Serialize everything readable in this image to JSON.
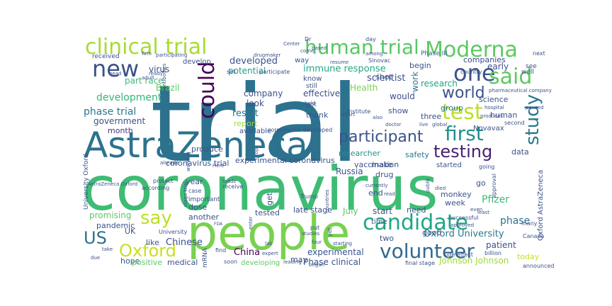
{
  "words": [
    {
      "text": "trial",
      "color": "#2c728e"
    },
    {
      "text": "coronavirus",
      "color": "#3fbc73"
    },
    {
      "text": "people",
      "color": "#7ad151"
    },
    {
      "text": "AstraZeneca",
      "color": "#2c728e"
    },
    {
      "text": "clinical trial",
      "color": "#a8db34"
    },
    {
      "text": "human trial",
      "color": "#58c765"
    },
    {
      "text": "Moderna",
      "color": "#5ec962"
    },
    {
      "text": "new",
      "color": "#3b528b"
    },
    {
      "text": "one",
      "color": "#3b528b"
    },
    {
      "text": "said",
      "color": "#5ec962"
    },
    {
      "text": "could",
      "color": "#440154"
    },
    {
      "text": "test",
      "color": "#bddf26"
    },
    {
      "text": "first",
      "color": "#21918c"
    },
    {
      "text": "study",
      "color": "#2a788e"
    },
    {
      "text": "world",
      "color": "#3b528b"
    },
    {
      "text": "participant",
      "color": "#3b528b"
    },
    {
      "text": "testing",
      "color": "#481f70"
    },
    {
      "text": "candidate",
      "color": "#21a685"
    },
    {
      "text": "volunteer",
      "color": "#31688e"
    },
    {
      "text": "say",
      "color": "#bddf26"
    },
    {
      "text": "US",
      "color": "#2c728e"
    },
    {
      "text": "Oxford",
      "color": "#c8e020"
    },
    {
      "text": "development",
      "color": "#35b779"
    },
    {
      "text": "phase trial",
      "color": "#2a788e"
    },
    {
      "text": "developed",
      "color": "#3b528b"
    },
    {
      "text": "immune response",
      "color": "#22a884"
    },
    {
      "text": "scientist",
      "color": "#3b528b"
    },
    {
      "text": "potential",
      "color": "#1f9e89"
    },
    {
      "text": "virus",
      "color": "#3b528b"
    },
    {
      "text": "part race",
      "color": "#3fbc73"
    },
    {
      "text": "Brazil",
      "color": "#5ec962"
    },
    {
      "text": "government",
      "color": "#3b528b"
    },
    {
      "text": "month",
      "color": "#46327e"
    },
    {
      "text": "result",
      "color": "#2c728e"
    },
    {
      "text": "company",
      "color": "#3b528b"
    },
    {
      "text": "look",
      "color": "#3b528b"
    },
    {
      "text": "report",
      "color": "#a0da39"
    },
    {
      "text": "effective",
      "color": "#3b528b"
    },
    {
      "text": "Health",
      "color": "#7ad151"
    },
    {
      "text": "research",
      "color": "#20a486"
    },
    {
      "text": "scientist",
      "color": "#3b528b"
    },
    {
      "text": "Phase III",
      "color": "#31688e"
    },
    {
      "text": "companies",
      "color": "#3e4989"
    },
    {
      "text": "early",
      "color": "#3b528b"
    },
    {
      "text": "science",
      "color": "#3b528b"
    },
    {
      "text": "group",
      "color": "#2a788e"
    },
    {
      "text": "begin",
      "color": "#3b528b"
    },
    {
      "text": "work",
      "color": "#2a788e"
    },
    {
      "text": "would",
      "color": "#3b528b"
    },
    {
      "text": "shot",
      "color": "#3b528b"
    },
    {
      "text": "safety",
      "color": "#2a788e"
    },
    {
      "text": "show",
      "color": "#3b528b"
    },
    {
      "text": "thank",
      "color": "#3b528b"
    },
    {
      "text": "vaccination",
      "color": "#3b528b"
    },
    {
      "text": "researcher",
      "color": "#21918c"
    },
    {
      "text": "Novavax",
      "color": "#3b528b"
    },
    {
      "text": "experimental coronavirus",
      "color": "#3b528b"
    },
    {
      "text": "coronavirus trial",
      "color": "#3b528b"
    },
    {
      "text": "make",
      "color": "#3b528b"
    },
    {
      "text": "drug",
      "color": "#3b528b"
    },
    {
      "text": "data",
      "color": "#3b528b"
    },
    {
      "text": "started",
      "color": "#3b528b"
    },
    {
      "text": "Russia",
      "color": "#3b528b"
    },
    {
      "text": "year",
      "color": "#3b528b"
    },
    {
      "text": "dose",
      "color": "#3b528b"
    },
    {
      "text": "month",
      "color": "#3b528b"
    },
    {
      "text": "get",
      "color": "#3b528b"
    },
    {
      "text": "promising",
      "color": "#5ec962"
    },
    {
      "text": "pandemic",
      "color": "#3b528b"
    },
    {
      "text": "Chinese",
      "color": "#3b528b"
    },
    {
      "text": "hope",
      "color": "#3b528b"
    },
    {
      "text": "like",
      "color": "#3b528b"
    },
    {
      "text": "UK",
      "color": "#3b528b"
    },
    {
      "text": "China",
      "color": "#440154"
    },
    {
      "text": "may",
      "color": "#3b528b"
    },
    {
      "text": "experimental",
      "color": "#3b528b"
    },
    {
      "text": "Phase clinical",
      "color": "#3b528b"
    },
    {
      "text": "developing",
      "color": "#5ec962"
    },
    {
      "text": "late stage",
      "color": "#3b528b"
    },
    {
      "text": "tested",
      "color": "#3b528b"
    },
    {
      "text": "July",
      "color": "#5ec962"
    },
    {
      "text": "start",
      "color": "#3b528b"
    },
    {
      "text": "need",
      "color": "#3b528b"
    },
    {
      "text": "week",
      "color": "#3b528b"
    },
    {
      "text": "Pfizer",
      "color": "#3fbc73"
    },
    {
      "text": "phase",
      "color": "#2c728e"
    },
    {
      "text": "patient",
      "color": "#3b528b"
    },
    {
      "text": "today",
      "color": "#c8e020"
    },
    {
      "text": "Oxford University",
      "color": "#2a788e"
    },
    {
      "text": "Johnson Johnson",
      "color": "#a0da39"
    },
    {
      "text": "two",
      "color": "#3b528b"
    },
    {
      "text": "good",
      "color": "#3b528b"
    },
    {
      "text": "end",
      "color": "#3b528b"
    },
    {
      "text": "monkey",
      "color": "#3b528b"
    },
    {
      "text": "time",
      "color": "#3b528b"
    },
    {
      "text": "go",
      "color": "#3b528b"
    },
    {
      "text": "medical",
      "color": "#3b528b"
    },
    {
      "text": "positive",
      "color": "#5ec962"
    },
    {
      "text": "mRNA",
      "color": "#3b528b"
    },
    {
      "text": "another",
      "color": "#3b528b"
    },
    {
      "text": "produce",
      "color": "#3b528b"
    },
    {
      "text": "available",
      "color": "#3b528b"
    },
    {
      "text": "coronavirus developed",
      "color": "#3b528b"
    },
    {
      "text": "Oxford AstraZeneca",
      "color": "#3b528b"
    },
    {
      "text": "human",
      "color": "#3b528b"
    },
    {
      "text": "three",
      "color": "#3b528b"
    },
    {
      "text": "Institute",
      "color": "#3b528b"
    },
    {
      "text": "still",
      "color": "#3b528b"
    },
    {
      "text": "got",
      "color": "#3b528b"
    },
    {
      "text": "know",
      "color": "#3b528b"
    },
    {
      "text": "develop",
      "color": "#3b528b"
    },
    {
      "text": "received",
      "color": "#3b528b"
    },
    {
      "text": "important",
      "color": "#3b528b"
    },
    {
      "text": "Trump",
      "color": "#3b528b"
    },
    {
      "text": "receive",
      "color": "#3b528b"
    },
    {
      "text": "successful",
      "color": "#3b528b"
    },
    {
      "text": "approval",
      "color": "#3b528b"
    },
    {
      "text": "going",
      "color": "#3b528b"
    },
    {
      "text": "many",
      "color": "#3b528b"
    },
    {
      "text": "billion",
      "color": "#3b528b"
    },
    {
      "text": "side effect",
      "color": "#3b528b"
    },
    {
      "text": "announced",
      "color": "#3b528b"
    },
    {
      "text": "final stage",
      "color": "#3b528b"
    },
    {
      "text": "Canada",
      "color": "#3b528b"
    },
    {
      "text": "University",
      "color": "#3b528b"
    },
    {
      "text": "University Oxford",
      "color": "#3b528b"
    },
    {
      "text": "AstraZeneca Oxford",
      "color": "#3b528b"
    },
    {
      "text": "according",
      "color": "#3b528b"
    },
    {
      "text": "protect",
      "color": "#3b528b"
    },
    {
      "text": "case",
      "color": "#3b528b"
    },
    {
      "text": "set",
      "color": "#3b528b"
    },
    {
      "text": "participate",
      "color": "#3b528b"
    },
    {
      "text": "way",
      "color": "#3b528b"
    },
    {
      "text": "see",
      "color": "#3b528b"
    },
    {
      "text": "well",
      "color": "#3b528b"
    },
    {
      "text": "Sinovac",
      "color": "#3b528b"
    },
    {
      "text": "pharmaceutical company",
      "color": "#3b528b"
    },
    {
      "text": "paused",
      "color": "#3b528b"
    },
    {
      "text": "hospital",
      "color": "#3b528b"
    },
    {
      "text": "second",
      "color": "#3b528b"
    },
    {
      "text": "country",
      "color": "#3b528b"
    },
    {
      "text": "drugmaker",
      "color": "#3b528b"
    },
    {
      "text": "participating",
      "color": "#3b528b"
    },
    {
      "text": "ready",
      "color": "#3b528b"
    },
    {
      "text": "adult",
      "color": "#3b528b"
    },
    {
      "text": "antibodies",
      "color": "#3b528b"
    },
    {
      "text": "Center",
      "color": "#3b528b"
    },
    {
      "text": "Dr",
      "color": "#3b528b"
    },
    {
      "text": "day",
      "color": "#3b528b"
    },
    {
      "text": "next",
      "color": "#3b528b"
    },
    {
      "text": "among",
      "color": "#3b528b"
    },
    {
      "text": "come",
      "color": "#3b528b"
    },
    {
      "text": "based",
      "color": "#3b528b"
    },
    {
      "text": "resume",
      "color": "#3b528b"
    },
    {
      "text": "hold",
      "color": "#3b528b"
    },
    {
      "text": "effort",
      "color": "#3b528b"
    },
    {
      "text": "doctor",
      "color": "#3b528b"
    },
    {
      "text": "live",
      "color": "#3b528b"
    },
    {
      "text": "also",
      "color": "#3b528b"
    },
    {
      "text": "global",
      "color": "#3b528b"
    },
    {
      "text": "head",
      "color": "#3b528b"
    },
    {
      "text": "made",
      "color": "#3b528b"
    },
    {
      "text": "already",
      "color": "#3b528b"
    },
    {
      "text": "working",
      "color": "#3b528b"
    },
    {
      "text": "stage trial",
      "color": "#3b528b"
    },
    {
      "text": "Here",
      "color": "#3b528b"
    },
    {
      "text": "top",
      "color": "#3b528b"
    },
    {
      "text": "enter",
      "color": "#3b528b"
    },
    {
      "text": "lab",
      "color": "#3b528b"
    },
    {
      "text": "find",
      "color": "#3b528b"
    },
    {
      "text": "soon",
      "color": "#3b528b"
    },
    {
      "text": "expert",
      "color": "#3b528b"
    },
    {
      "text": "leading",
      "color": "#3b528b"
    },
    {
      "text": "began",
      "color": "#3b528b"
    },
    {
      "text": "studies",
      "color": "#3b528b"
    },
    {
      "text": "four",
      "color": "#3b528b"
    },
    {
      "text": "put",
      "color": "#3b528b"
    },
    {
      "text": "yet",
      "color": "#3b528b"
    },
    {
      "text": "starting",
      "color": "#3b528b"
    },
    {
      "text": "countries",
      "color": "#3b528b"
    },
    {
      "text": "currently",
      "color": "#3b528b"
    },
    {
      "text": "read",
      "color": "#3b528b"
    },
    {
      "text": "public",
      "color": "#3b528b"
    },
    {
      "text": "died",
      "color": "#3b528b"
    },
    {
      "text": "even",
      "color": "#3b528b"
    },
    {
      "text": "least",
      "color": "#3b528b"
    },
    {
      "text": "produces",
      "color": "#3b528b"
    },
    {
      "text": "approved",
      "color": "#3b528b"
    },
    {
      "text": "take",
      "color": "#3b528b"
    },
    {
      "text": "due",
      "color": "#3b528b"
    },
    {
      "text": "FDA",
      "color": "#3b528b"
    },
    {
      "text": "firm",
      "color": "#3b528b"
    },
    {
      "text": "Center",
      "color": "#3b528b"
    }
  ]
}
